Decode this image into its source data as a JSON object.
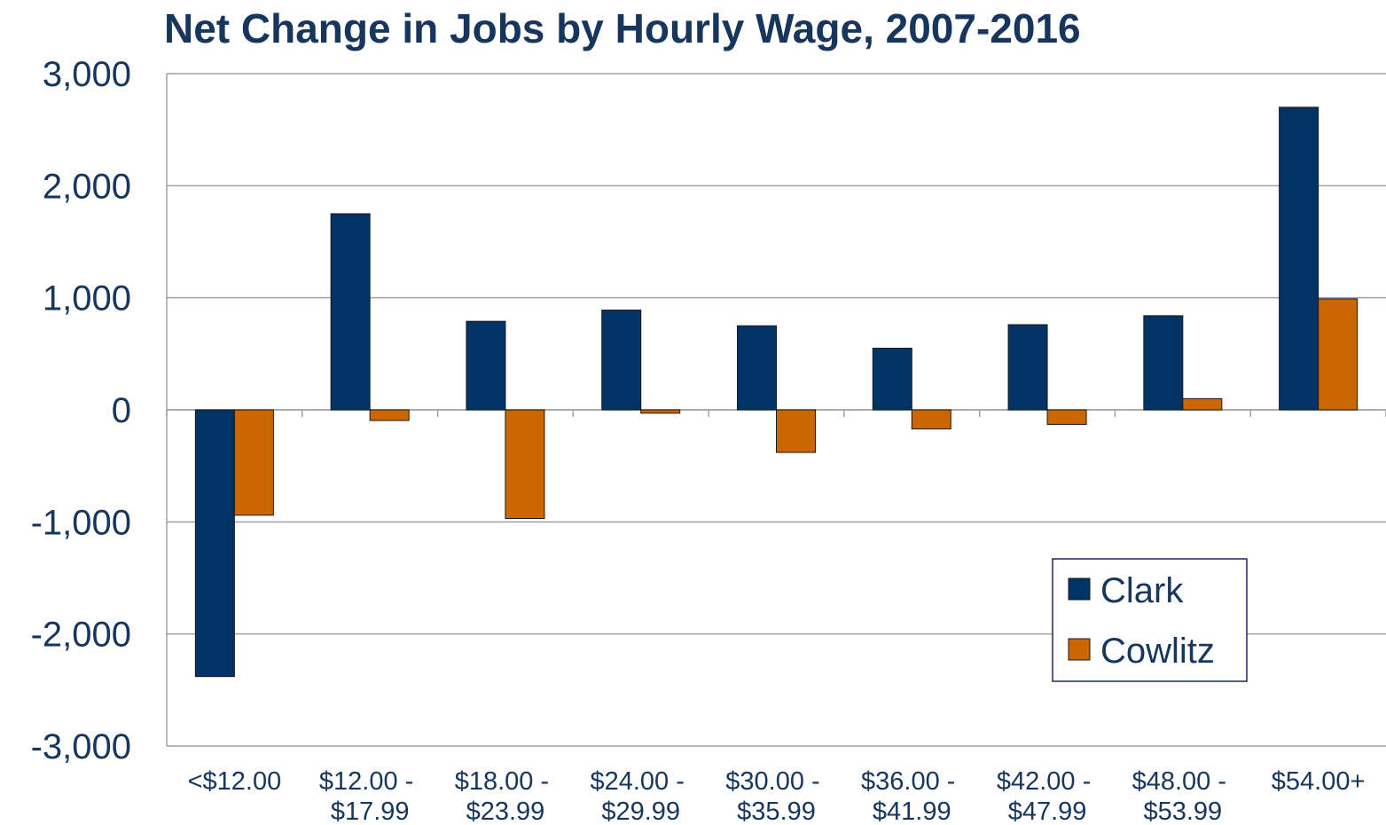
{
  "chart_data": {
    "type": "bar",
    "title": "Net Change in Jobs by Hourly Wage, 2007-2016",
    "categories": [
      "<$12.00",
      "$12.00 - $17.99",
      "$18.00 - $23.99",
      "$24.00 - $29.99",
      "$30.00 - $35.99",
      "$36.00 - $41.99",
      "$42.00 - $47.99",
      "$48.00 - $53.99",
      "$54.00+"
    ],
    "series": [
      {
        "name": "Clark",
        "color": "#003366",
        "values": [
          -2380,
          1750,
          790,
          890,
          750,
          550,
          760,
          840,
          2700
        ]
      },
      {
        "name": "Cowlitz",
        "color": "#cc6600",
        "values": [
          -940,
          -95,
          -970,
          -30,
          -380,
          -170,
          -130,
          100,
          990
        ]
      }
    ],
    "ylim": [
      -3000,
      3000
    ],
    "yticks": [
      {
        "value": -3000,
        "label": "-3,000"
      },
      {
        "value": -2000,
        "label": "-2,000"
      },
      {
        "value": -1000,
        "label": "-1,000"
      },
      0,
      {
        "value": 1000,
        "label": "1,000"
      },
      {
        "value": 2000,
        "label": "2,000"
      },
      {
        "value": 3000,
        "label": "3,000"
      }
    ],
    "grid": true,
    "legend": "lower right"
  }
}
